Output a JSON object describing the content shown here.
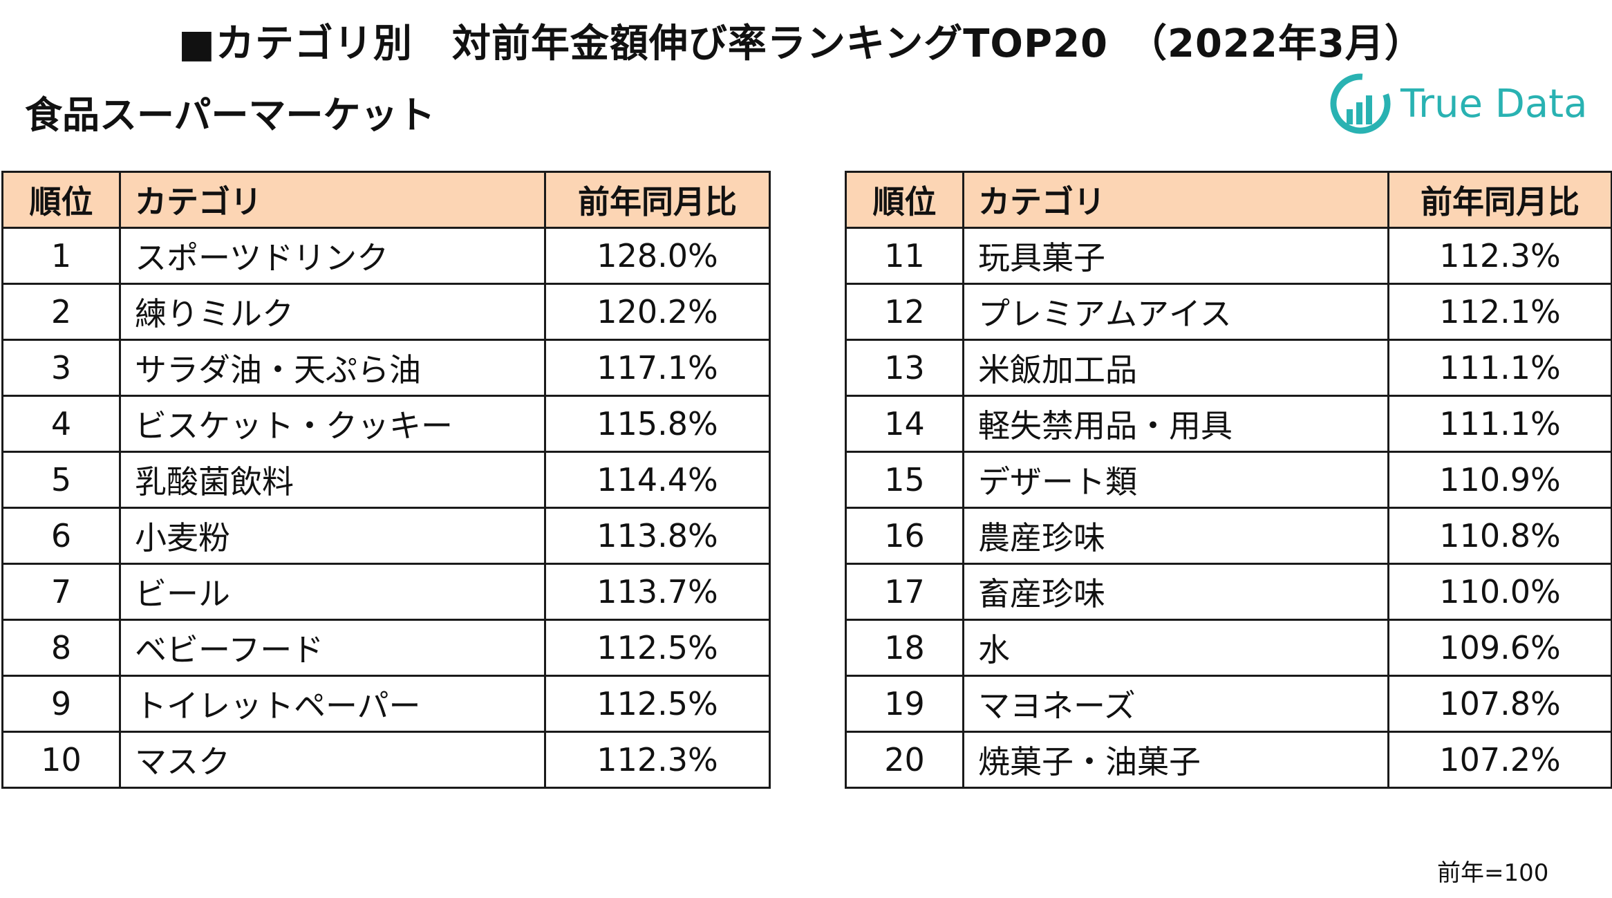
{
  "header": {
    "title": "■カテゴリ別　対前年金額伸び率ランキングTOP20　（2022年3月）",
    "subtitle": "食品スーパーマーケット",
    "logo_text": "True Data",
    "logo_color": "#29b2b2"
  },
  "columns": {
    "rank": "順位",
    "category": "カテゴリ",
    "ratio": "前年同月比"
  },
  "header_bg": "#fcd5b4",
  "left_table": [
    {
      "rank": "1",
      "category": "スポーツドリンク",
      "ratio": "128.0%"
    },
    {
      "rank": "2",
      "category": "練りミルク",
      "ratio": "120.2%"
    },
    {
      "rank": "3",
      "category": "サラダ油・天ぷら油",
      "ratio": "117.1%"
    },
    {
      "rank": "4",
      "category": "ビスケット・クッキー",
      "ratio": "115.8%"
    },
    {
      "rank": "5",
      "category": "乳酸菌飲料",
      "ratio": "114.4%"
    },
    {
      "rank": "6",
      "category": "小麦粉",
      "ratio": "113.8%"
    },
    {
      "rank": "7",
      "category": "ビール",
      "ratio": "113.7%"
    },
    {
      "rank": "8",
      "category": "ベビーフード",
      "ratio": "112.5%"
    },
    {
      "rank": "9",
      "category": "トイレットペーパー",
      "ratio": "112.5%"
    },
    {
      "rank": "10",
      "category": "マスク",
      "ratio": "112.3%"
    }
  ],
  "right_table": [
    {
      "rank": "11",
      "category": "玩具菓子",
      "ratio": "112.3%"
    },
    {
      "rank": "12",
      "category": "プレミアムアイス",
      "ratio": "112.1%"
    },
    {
      "rank": "13",
      "category": "米飯加工品",
      "ratio": "111.1%"
    },
    {
      "rank": "14",
      "category": "軽失禁用品・用具",
      "ratio": "111.1%"
    },
    {
      "rank": "15",
      "category": "デザート類",
      "ratio": "110.9%"
    },
    {
      "rank": "16",
      "category": "農産珍味",
      "ratio": "110.8%"
    },
    {
      "rank": "17",
      "category": "畜産珍味",
      "ratio": "110.0%"
    },
    {
      "rank": "18",
      "category": "水",
      "ratio": "109.6%"
    },
    {
      "rank": "19",
      "category": "マヨネーズ",
      "ratio": "107.8%"
    },
    {
      "rank": "20",
      "category": "焼菓子・油菓子",
      "ratio": "107.2%"
    }
  ],
  "footnote": "前年=100"
}
